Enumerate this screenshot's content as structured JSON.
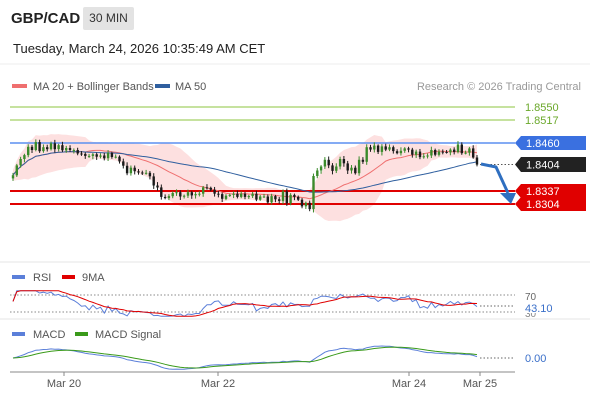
{
  "header": {
    "symbol": "GBP/CAD",
    "timeframe": "30 MIN",
    "datetime": "Tuesday, March 24, 2026 10:35:49 AM CET"
  },
  "legend": {
    "ma20_bb": "MA 20 + Bollinger Bands",
    "ma50": "MA 50",
    "copyright": "Research © 2026 Trading Central"
  },
  "colors": {
    "ma20": "#ef6f6f",
    "bollinger_fill": "#fde0e0",
    "ma50": "#2f5f9f",
    "resistance_green": "#8cc63f",
    "pivot_blue": "#5b8ff0",
    "support_red": "#e00000",
    "forecast_arrow": "#2f6fc0",
    "rsi": "#5b7fd9",
    "rsi_ma": "#e00000",
    "macd": "#5b7fd9",
    "macd_signal": "#3a9a1a",
    "candle_up": "#3a8a2a",
    "candle_down": "#1a1a1a"
  },
  "levels": {
    "r2": "1.8550",
    "r1": "1.8517",
    "pivot": "1.8460",
    "last": "1.8404",
    "s1": "1.8337",
    "s2": "1.8304"
  },
  "rsi_panel": {
    "rsi_label": "RSI",
    "ma_label": "9MA",
    "level_70": "70",
    "level_30": "30",
    "current": "43.10"
  },
  "macd_panel": {
    "macd_label": "MACD",
    "signal_label": "MACD Signal",
    "current": "0.00"
  },
  "x_axis": {
    "ticks": [
      "Mar 20",
      "Mar 22",
      "Mar 24",
      "Mar 25"
    ]
  },
  "chart_data": {
    "type": "candlestick",
    "ylim": [
      1.8255,
      1.857
    ],
    "close": [
      1.8377,
      1.8402,
      1.8418,
      1.8428,
      1.8449,
      1.8441,
      1.8461,
      1.8438,
      1.8448,
      1.8443,
      1.8458,
      1.8443,
      1.8453,
      1.844,
      1.8446,
      1.8441,
      1.8441,
      1.8432,
      1.8431,
      1.8426,
      1.8426,
      1.843,
      1.8424,
      1.8427,
      1.842,
      1.8433,
      1.8423,
      1.8424,
      1.8412,
      1.8401,
      1.8382,
      1.8396,
      1.8387,
      1.8384,
      1.8382,
      1.8383,
      1.8374,
      1.8351,
      1.8346,
      1.8322,
      1.8319,
      1.8324,
      1.8332,
      1.8334,
      1.8323,
      1.8325,
      1.8334,
      1.8326,
      1.8329,
      1.833,
      1.8346,
      1.8345,
      1.834,
      1.833,
      1.8329,
      1.8317,
      1.8325,
      1.8327,
      1.833,
      1.8322,
      1.833,
      1.8322,
      1.8324,
      1.833,
      1.8315,
      1.8323,
      1.8323,
      1.8308,
      1.8324,
      1.8316,
      1.8312,
      1.8336,
      1.8306,
      1.8327,
      1.8322,
      1.8315,
      1.8298,
      1.8307,
      1.8291,
      1.8375,
      1.8389,
      1.8399,
      1.8416,
      1.8402,
      1.8388,
      1.8399,
      1.8418,
      1.8407,
      1.8389,
      1.8396,
      1.8382,
      1.8416,
      1.8411,
      1.8448,
      1.8442,
      1.8452,
      1.8436,
      1.845,
      1.8442,
      1.8448,
      1.8438,
      1.8433,
      1.8439,
      1.8445,
      1.8442,
      1.8429,
      1.8437,
      1.8423,
      1.8425,
      1.8427,
      1.8441,
      1.8429,
      1.8437,
      1.8436,
      1.8435,
      1.8442,
      1.8436,
      1.8455,
      1.8433,
      1.8434,
      1.8445,
      1.8422,
      1.8404
    ],
    "series": [
      {
        "name": "MA 20 + Bollinger Bands"
      },
      {
        "name": "MA 50"
      },
      {
        "name": "RSI"
      },
      {
        "name": "9MA"
      },
      {
        "name": "MACD"
      },
      {
        "name": "MACD Signal"
      }
    ],
    "forecast": [
      1.8404,
      1.8398,
      1.8325
    ]
  }
}
